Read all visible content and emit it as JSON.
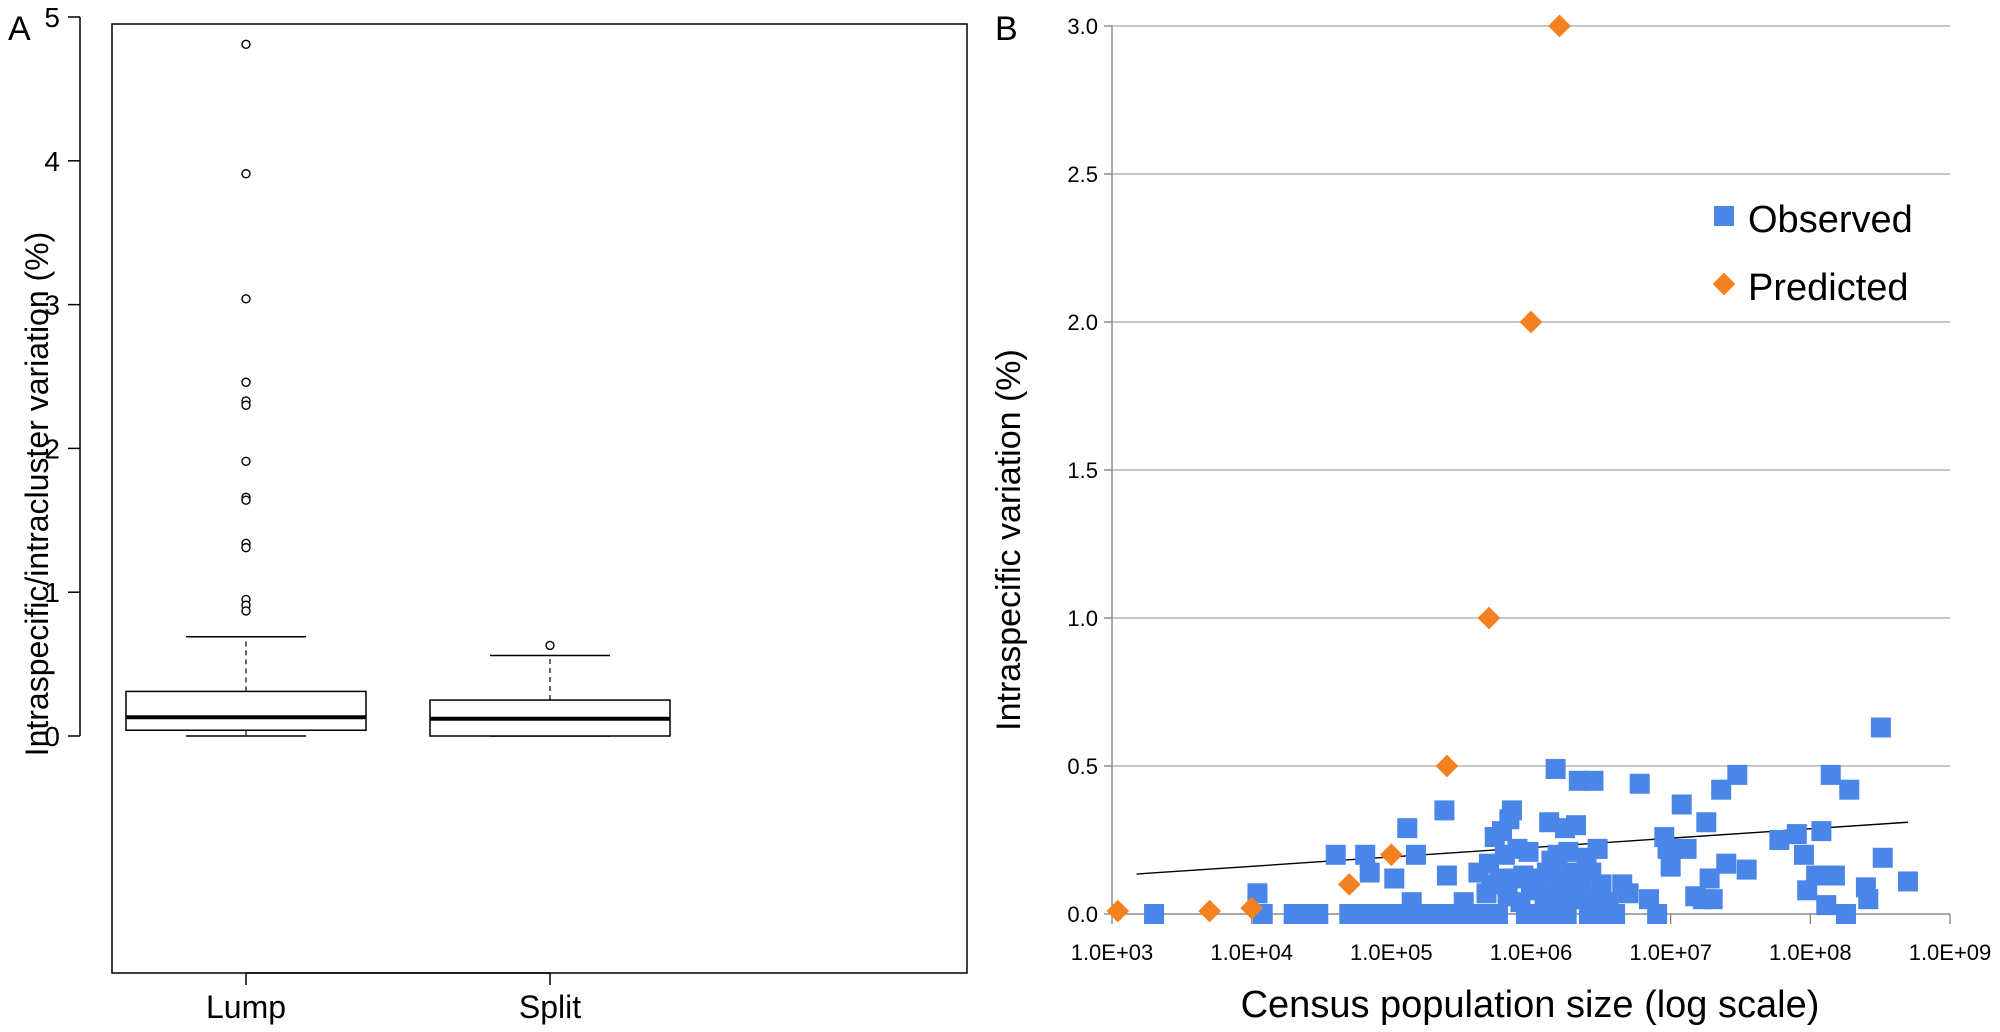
{
  "panels": {
    "a_label": "A",
    "b_label": "B"
  },
  "chart_data": [
    {
      "type": "box",
      "panel": "A",
      "ylabel": "Intraspecific/intracluster variation (%)",
      "ylim": [
        0,
        5
      ],
      "yticks": [
        0,
        1,
        2,
        3,
        4,
        5
      ],
      "categories": [
        "Lump",
        "Split"
      ],
      "boxes": [
        {
          "category": "Lump",
          "whisker_low": 0.0,
          "q1": 0.04,
          "median": 0.13,
          "q3": 0.31,
          "whisker_high": 0.69,
          "outliers": [
            4.81,
            3.91,
            3.04,
            2.46,
            2.33,
            2.3,
            1.91,
            1.66,
            1.64,
            1.34,
            1.31,
            0.95,
            0.91,
            0.87
          ]
        },
        {
          "category": "Split",
          "whisker_low": 0.0,
          "q1": 0.0,
          "median": 0.12,
          "q3": 0.25,
          "whisker_high": 0.56,
          "outliers": [
            0.63
          ]
        }
      ]
    },
    {
      "type": "scatter",
      "panel": "B",
      "xlabel": "Census population size (log scale)",
      "ylabel": "Intraspecific variation (%)",
      "xscale": "log",
      "xlim": [
        1000,
        1000000000
      ],
      "ylim": [
        0,
        3
      ],
      "xticks": [
        "1.0E+03",
        "1.0E+04",
        "1.0E+05",
        "1.0E+06",
        "1.0E+07",
        "1.0E+08",
        "1.0E+09"
      ],
      "yticks": [
        "0.0",
        "0.5",
        "1.0",
        "1.5",
        "2.0",
        "2.5",
        "3.0"
      ],
      "grid": "horizontal",
      "legend_position": "top-right",
      "series": [
        {
          "name": "Observed",
          "marker": "square",
          "color": "#4a86e8",
          "points": [
            [
              2000,
              0.0
            ],
            [
              11000,
              0.07
            ],
            [
              12000,
              0.0
            ],
            [
              20000,
              0.0
            ],
            [
              25000,
              0.0
            ],
            [
              30000,
              0.0
            ],
            [
              40000,
              0.2
            ],
            [
              50000,
              0.0
            ],
            [
              60000,
              0.0
            ],
            [
              65000,
              0.2
            ],
            [
              70000,
              0.14
            ],
            [
              80000,
              0.0
            ],
            [
              90000,
              0.0
            ],
            [
              100000,
              0.0
            ],
            [
              105000,
              0.12
            ],
            [
              115000,
              0.0
            ],
            [
              125000,
              0.0
            ],
            [
              130000,
              0.29
            ],
            [
              140000,
              0.04
            ],
            [
              150000,
              0.2
            ],
            [
              160000,
              0.0
            ],
            [
              180000,
              0.0
            ],
            [
              200000,
              0.0
            ],
            [
              220000,
              0.0
            ],
            [
              240000,
              0.35
            ],
            [
              250000,
              0.13
            ],
            [
              270000,
              0.0
            ],
            [
              290000,
              0.0
            ],
            [
              310000,
              0.0
            ],
            [
              330000,
              0.04
            ],
            [
              360000,
              0.0
            ],
            [
              390000,
              0.0
            ],
            [
              420000,
              0.14
            ],
            [
              450000,
              0.0
            ],
            [
              480000,
              0.07
            ],
            [
              500000,
              0.17
            ],
            [
              520000,
              0.1
            ],
            [
              550000,
              0.26
            ],
            [
              580000,
              0.0
            ],
            [
              600000,
              0.12
            ],
            [
              620000,
              0.28
            ],
            [
              650000,
              0.2
            ],
            [
              680000,
              0.06
            ],
            [
              700000,
              0.32
            ],
            [
              730000,
              0.35
            ],
            [
              760000,
              0.12
            ],
            [
              800000,
              0.22
            ],
            [
              840000,
              0.04
            ],
            [
              880000,
              0.13
            ],
            [
              920000,
              0.0
            ],
            [
              960000,
              0.21
            ],
            [
              1000000,
              0.1
            ],
            [
              1050000,
              0.0
            ],
            [
              1100000,
              0.08
            ],
            [
              1150000,
              0.12
            ],
            [
              1200000,
              0.0
            ],
            [
              1250000,
              0.06
            ],
            [
              1300000,
              0.14
            ],
            [
              1350000,
              0.31
            ],
            [
              1400000,
              0.18
            ],
            [
              1450000,
              0.0
            ],
            [
              1500000,
              0.49
            ],
            [
              1550000,
              0.2
            ],
            [
              1600000,
              0.09
            ],
            [
              1650000,
              0.04
            ],
            [
              1700000,
              0.12
            ],
            [
              1750000,
              0.29
            ],
            [
              1800000,
              0.0
            ],
            [
              1850000,
              0.21
            ],
            [
              1900000,
              0.06
            ],
            [
              1950000,
              0.14
            ],
            [
              2000000,
              0.11
            ],
            [
              2100000,
              0.3
            ],
            [
              2200000,
              0.45
            ],
            [
              2300000,
              0.1
            ],
            [
              2400000,
              0.05
            ],
            [
              2500000,
              0.19
            ],
            [
              2600000,
              0.0
            ],
            [
              2700000,
              0.14
            ],
            [
              2800000,
              0.45
            ],
            [
              2900000,
              0.05
            ],
            [
              3000000,
              0.22
            ],
            [
              3200000,
              0.1
            ],
            [
              3400000,
              0.0
            ],
            [
              3600000,
              0.04
            ],
            [
              4000000,
              0.0
            ],
            [
              4500000,
              0.1
            ],
            [
              5000000,
              0.07
            ],
            [
              6000000,
              0.44
            ],
            [
              7000000,
              0.05
            ],
            [
              8000000,
              0.0
            ],
            [
              9000000,
              0.26
            ],
            [
              9500000,
              0.22
            ],
            [
              10000000,
              0.16
            ],
            [
              12000000,
              0.37
            ],
            [
              13000000,
              0.22
            ],
            [
              15000000,
              0.06
            ],
            [
              17000000,
              0.05
            ],
            [
              18000000,
              0.31
            ],
            [
              19000000,
              0.12
            ],
            [
              20000000,
              0.05
            ],
            [
              23000000,
              0.42
            ],
            [
              25000000,
              0.17
            ],
            [
              30000000,
              0.47
            ],
            [
              35000000,
              0.15
            ],
            [
              60000000,
              0.25
            ],
            [
              80000000,
              0.27
            ],
            [
              90000000,
              0.2
            ],
            [
              95000000,
              0.08
            ],
            [
              110000000,
              0.13
            ],
            [
              120000000,
              0.28
            ],
            [
              130000000,
              0.03
            ],
            [
              140000000,
              0.47
            ],
            [
              150000000,
              0.13
            ],
            [
              180000000,
              0.0
            ],
            [
              190000000,
              0.42
            ],
            [
              250000000,
              0.09
            ],
            [
              260000000,
              0.05
            ],
            [
              320000000,
              0.63
            ],
            [
              330000000,
              0.19
            ],
            [
              500000000,
              0.11
            ]
          ]
        },
        {
          "name": "Predicted",
          "marker": "diamond",
          "color": "#f4811f",
          "points": [
            [
              1100,
              0.01
            ],
            [
              5000,
              0.01
            ],
            [
              10000,
              0.02
            ],
            [
              50000,
              0.1
            ],
            [
              100000,
              0.2
            ],
            [
              250000,
              0.5
            ],
            [
              500000,
              1.0
            ],
            [
              1000000,
              2.0
            ],
            [
              1600000,
              3.0
            ]
          ]
        }
      ],
      "trendline": {
        "x": [
          1500,
          500000000
        ],
        "y": [
          0.135,
          0.31
        ]
      }
    }
  ]
}
